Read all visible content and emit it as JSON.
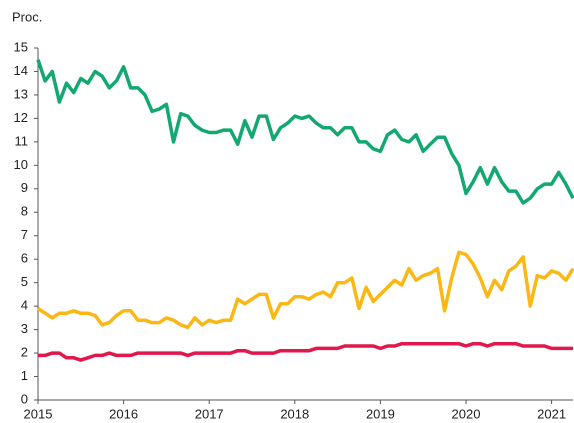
{
  "chart_data": {
    "type": "line",
    "y_axis_label": "Proc.",
    "x": [
      2015,
      2015.083,
      2015.167,
      2015.25,
      2015.333,
      2015.417,
      2015.5,
      2015.583,
      2015.667,
      2015.75,
      2015.833,
      2015.917,
      2016,
      2016.083,
      2016.167,
      2016.25,
      2016.333,
      2016.417,
      2016.5,
      2016.583,
      2016.667,
      2016.75,
      2016.833,
      2016.917,
      2017,
      2017.083,
      2017.167,
      2017.25,
      2017.333,
      2017.417,
      2017.5,
      2017.583,
      2017.667,
      2017.75,
      2017.833,
      2017.917,
      2018,
      2018.083,
      2018.167,
      2018.25,
      2018.333,
      2018.417,
      2018.5,
      2018.583,
      2018.667,
      2018.75,
      2018.833,
      2018.917,
      2019,
      2019.083,
      2019.167,
      2019.25,
      2019.333,
      2019.417,
      2019.5,
      2019.583,
      2019.667,
      2019.75,
      2019.833,
      2019.917,
      2020,
      2020.083,
      2020.167,
      2020.25,
      2020.333,
      2020.417,
      2020.5,
      2020.583,
      2020.667,
      2020.75,
      2020.833,
      2020.917,
      2021,
      2021.083,
      2021.167,
      2021.25
    ],
    "series": [
      {
        "color": "#12a870",
        "values": [
          14.5,
          13.6,
          14.0,
          12.7,
          13.5,
          13.1,
          13.7,
          13.5,
          14.0,
          13.8,
          13.3,
          13.6,
          14.2,
          13.3,
          13.3,
          13.0,
          12.3,
          12.4,
          12.6,
          11.0,
          12.2,
          12.1,
          11.7,
          11.5,
          11.4,
          11.4,
          11.5,
          11.5,
          10.9,
          11.9,
          11.2,
          12.1,
          12.1,
          11.1,
          11.6,
          11.8,
          12.1,
          12.0,
          12.1,
          11.8,
          11.6,
          11.6,
          11.3,
          11.6,
          11.6,
          11.0,
          11.0,
          10.7,
          10.6,
          11.3,
          11.5,
          11.1,
          11.0,
          11.3,
          10.6,
          10.9,
          11.2,
          11.2,
          10.5,
          10.0,
          8.8,
          9.3,
          9.9,
          9.2,
          9.9,
          9.3,
          8.9,
          8.9,
          8.4,
          8.6,
          9.0,
          9.2,
          9.2,
          9.7,
          9.2,
          8.6
        ]
      },
      {
        "color": "#fbb714",
        "values": [
          3.9,
          3.7,
          3.5,
          3.7,
          3.7,
          3.8,
          3.7,
          3.7,
          3.6,
          3.2,
          3.3,
          3.6,
          3.8,
          3.8,
          3.4,
          3.4,
          3.3,
          3.3,
          3.5,
          3.4,
          3.2,
          3.1,
          3.5,
          3.2,
          3.4,
          3.3,
          3.4,
          3.4,
          4.3,
          4.1,
          4.3,
          4.5,
          4.5,
          3.5,
          4.1,
          4.1,
          4.4,
          4.4,
          4.3,
          4.5,
          4.6,
          4.4,
          5.0,
          5.0,
          5.2,
          3.9,
          4.8,
          4.2,
          4.5,
          4.8,
          5.1,
          4.9,
          5.6,
          5.1,
          5.3,
          5.4,
          5.6,
          3.8,
          5.2,
          6.3,
          6.2,
          5.8,
          5.2,
          4.4,
          5.1,
          4.7,
          5.5,
          5.7,
          6.1,
          4.0,
          5.3,
          5.2,
          5.5,
          5.4,
          5.1,
          5.6
        ]
      },
      {
        "color": "#e0184c",
        "values": [
          1.9,
          1.9,
          2.0,
          2.0,
          1.8,
          1.8,
          1.7,
          1.8,
          1.9,
          1.9,
          2.0,
          1.9,
          1.9,
          1.9,
          2.0,
          2.0,
          2.0,
          2.0,
          2.0,
          2.0,
          2.0,
          1.9,
          2.0,
          2.0,
          2.0,
          2.0,
          2.0,
          2.0,
          2.1,
          2.1,
          2.0,
          2.0,
          2.0,
          2.0,
          2.1,
          2.1,
          2.1,
          2.1,
          2.1,
          2.2,
          2.2,
          2.2,
          2.2,
          2.3,
          2.3,
          2.3,
          2.3,
          2.3,
          2.2,
          2.3,
          2.3,
          2.4,
          2.4,
          2.4,
          2.4,
          2.4,
          2.4,
          2.4,
          2.4,
          2.4,
          2.3,
          2.4,
          2.4,
          2.3,
          2.4,
          2.4,
          2.4,
          2.4,
          2.3,
          2.3,
          2.3,
          2.3,
          2.2,
          2.2,
          2.2,
          2.2
        ]
      }
    ],
    "xlim": [
      2015,
      2021.25
    ],
    "xticks": [
      2015,
      2016,
      2017,
      2018,
      2019,
      2020,
      2021
    ],
    "ylim": [
      0,
      15
    ],
    "yticks": [
      0,
      1,
      2,
      3,
      4,
      5,
      6,
      7,
      8,
      9,
      10,
      11,
      12,
      13,
      14,
      15
    ]
  }
}
